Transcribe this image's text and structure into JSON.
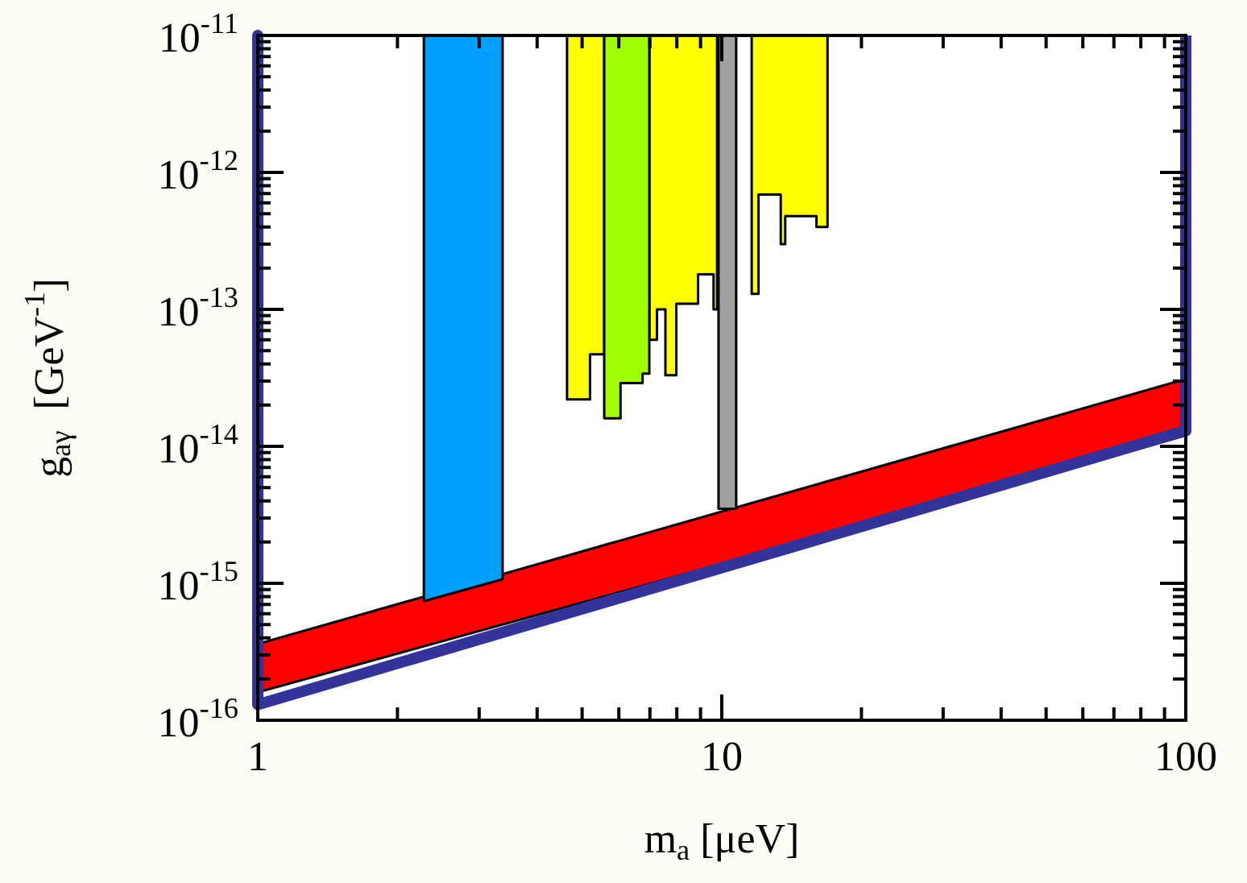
{
  "chart_data": {
    "type": "area",
    "xlabel": "m$_{a}$ [μeV]",
    "ylabel": "g$_{aγ}$  [GeV$^{-1}$]",
    "log": "xy",
    "marker": "none",
    "xlim": [
      1,
      100
    ],
    "ylim": [
      1e-16,
      1e-11
    ],
    "xticks": [
      1,
      {
        "value": 2,
        "label": null
      },
      {
        "value": 3,
        "label": null
      },
      {
        "value": 4,
        "label": null
      },
      {
        "value": 5,
        "label": null
      },
      {
        "value": 6,
        "label": null
      },
      {
        "value": 7,
        "label": null
      },
      {
        "value": 8,
        "label": null
      },
      {
        "value": 9,
        "label": null
      },
      10,
      {
        "value": 20,
        "label": null
      },
      {
        "value": 30,
        "label": null
      },
      {
        "value": 40,
        "label": null
      },
      {
        "value": 50,
        "label": null
      },
      {
        "value": 60,
        "label": null
      },
      {
        "value": 70,
        "label": null
      },
      {
        "value": 80,
        "label": null
      },
      {
        "value": 90,
        "label": null
      },
      100
    ],
    "yticks": [
      {
        "value": 1e-16,
        "label": "10$^{-16}$"
      },
      {
        "value": 2e-16,
        "label": null
      },
      {
        "value": 3e-16,
        "label": null
      },
      {
        "value": 4e-16,
        "label": null
      },
      {
        "value": 5e-16,
        "label": null
      },
      {
        "value": 6e-16,
        "label": null
      },
      {
        "value": 7e-16,
        "label": null
      },
      {
        "value": 8e-16,
        "label": null
      },
      {
        "value": 9e-16,
        "label": null
      },
      {
        "value": 1e-15,
        "label": "10$^{-15}$"
      },
      {
        "value": 2e-15,
        "label": null
      },
      {
        "value": 3e-15,
        "label": null
      },
      {
        "value": 4e-15,
        "label": null
      },
      {
        "value": 5e-15,
        "label": null
      },
      {
        "value": 6e-15,
        "label": null
      },
      {
        "value": 7e-15,
        "label": null
      },
      {
        "value": 8e-15,
        "label": null
      },
      {
        "value": 9e-15,
        "label": null
      },
      {
        "value": 1e-14,
        "label": "10$^{-14}$"
      },
      {
        "value": 2e-14,
        "label": null
      },
      {
        "value": 3e-14,
        "label": null
      },
      {
        "value": 4e-14,
        "label": null
      },
      {
        "value": 5e-14,
        "label": null
      },
      {
        "value": 6e-14,
        "label": null
      },
      {
        "value": 7e-14,
        "label": null
      },
      {
        "value": 8e-14,
        "label": null
      },
      {
        "value": 9e-14,
        "label": null
      },
      {
        "value": 1e-13,
        "label": "10$^{-13}$"
      },
      {
        "value": 2e-13,
        "label": null
      },
      {
        "value": 3e-13,
        "label": null
      },
      {
        "value": 4e-13,
        "label": null
      },
      {
        "value": 5e-13,
        "label": null
      },
      {
        "value": 6e-13,
        "label": null
      },
      {
        "value": 7e-13,
        "label": null
      },
      {
        "value": 8e-13,
        "label": null
      },
      {
        "value": 9e-13,
        "label": null
      },
      {
        "value": 1e-12,
        "label": "10$^{-12}$"
      },
      {
        "value": 2e-12,
        "label": null
      },
      {
        "value": 3e-12,
        "label": null
      },
      {
        "value": 4e-12,
        "label": null
      },
      {
        "value": 5e-12,
        "label": null
      },
      {
        "value": 6e-12,
        "label": null
      },
      {
        "value": 7e-12,
        "label": null
      },
      {
        "value": 8e-12,
        "label": null
      },
      {
        "value": 9e-12,
        "label": null
      },
      {
        "value": 1e-11,
        "label": "10$^{-11}$"
      }
    ],
    "series": [
      {
        "color": "#ff0000",
        "x": [
          1,
          100,
          100,
          1,
          1
        ],
        "values": [
          3.6e-16,
          3.1e-14,
          1.2e-14,
          1.6e-16,
          3.6e-16
        ]
      },
      {
        "color": "#00a0ff",
        "x": [
          2.28,
          2.28,
          3.37,
          3.37
        ],
        "values": [
          1e-11,
          7.4e-16,
          1.07e-15,
          1e-11
        ]
      },
      {
        "color": "#ffff00",
        "x": [
          4.64,
          4.64,
          5.2,
          5.2,
          5.58,
          5.58
        ],
        "values": [
          1e-11,
          2.2e-14,
          2.2e-14,
          4.7e-14,
          4.7e-14,
          1e-11
        ]
      },
      {
        "color": "#ffff00",
        "x": [
          6.98,
          6.98,
          7.25,
          7.25,
          7.56,
          7.56,
          7.98,
          7.98,
          8.89,
          8.89,
          9.6,
          9.6,
          9.77,
          9.77
        ],
        "values": [
          1e-11,
          6e-14,
          6e-14,
          1e-13,
          1e-13,
          3.3e-14,
          3.3e-14,
          1.1e-13,
          1.1e-13,
          1.8e-13,
          1.8e-13,
          1e-13,
          1e-13,
          1e-11
        ]
      },
      {
        "color": "#a0ff00",
        "x": [
          5.58,
          5.58,
          6.05,
          6.05,
          6.75,
          6.75,
          6.98,
          6.98
        ],
        "values": [
          1e-11,
          1.6e-14,
          1.6e-14,
          2.9e-14,
          2.9e-14,
          3.4e-14,
          3.4e-14,
          1e-11
        ]
      },
      {
        "color": "#a0a0a0",
        "x": [
          9.84,
          9.84,
          10.74,
          10.74
        ],
        "values": [
          1e-11,
          3.5e-15,
          3.5e-15,
          1e-11
        ]
      },
      {
        "color": "#ffff00",
        "x": [
          11.6,
          11.6,
          12.0,
          12.0,
          13.4,
          13.4,
          13.7,
          13.7,
          16.0,
          16.0,
          16.9,
          16.9
        ],
        "values": [
          1e-11,
          1.3e-13,
          1.3e-13,
          6.9e-13,
          6.9e-13,
          3e-13,
          3e-13,
          4.8e-13,
          4.8e-13,
          4e-13,
          4e-13,
          1e-11
        ]
      },
      {
        "type": "line",
        "color": "#333399",
        "x": [
          1,
          1,
          100,
          100
        ],
        "values": [
          1e-11,
          1.3e-16,
          1.3e-14,
          1e-11
        ]
      }
    ]
  }
}
